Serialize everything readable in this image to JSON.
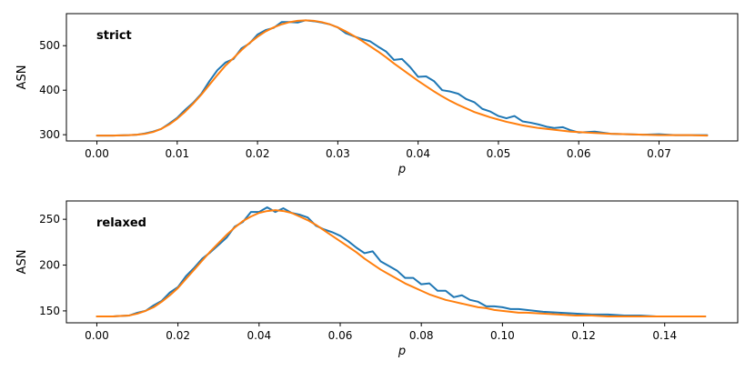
{
  "chart_data": [
    {
      "type": "line",
      "title": "strict",
      "xlabel": "p",
      "ylabel": "ASN",
      "xlim": [
        -0.0038,
        0.0798
      ],
      "ylim": [
        286,
        572
      ],
      "xticks": [
        0.0,
        0.01,
        0.02,
        0.03,
        0.04,
        0.05,
        0.06,
        0.07
      ],
      "xtick_labels": [
        "0.00",
        "0.01",
        "0.02",
        "0.03",
        "0.04",
        "0.05",
        "0.06",
        "0.07"
      ],
      "yticks": [
        300,
        400,
        500
      ],
      "ytick_labels": [
        "300",
        "400",
        "500"
      ],
      "grid": false,
      "series": [
        {
          "color": "#1f77b4",
          "x": [
            0,
            0.002,
            0.004,
            0.005,
            0.006,
            0.007,
            0.008,
            0.009,
            0.01,
            0.011,
            0.012,
            0.013,
            0.014,
            0.015,
            0.016,
            0.017,
            0.018,
            0.019,
            0.02,
            0.021,
            0.022,
            0.023,
            0.024,
            0.025,
            0.026,
            0.027,
            0.028,
            0.029,
            0.03,
            0.031,
            0.032,
            0.033,
            0.034,
            0.035,
            0.036,
            0.037,
            0.038,
            0.039,
            0.04,
            0.041,
            0.042,
            0.043,
            0.044,
            0.045,
            0.046,
            0.047,
            0.048,
            0.049,
            0.05,
            0.051,
            0.052,
            0.053,
            0.054,
            0.055,
            0.056,
            0.057,
            0.058,
            0.059,
            0.06,
            0.062,
            0.064,
            0.066,
            0.068,
            0.07,
            0.072,
            0.074,
            0.076
          ],
          "y": [
            298,
            298,
            299,
            300,
            303,
            307,
            313,
            325,
            338,
            356,
            372,
            392,
            420,
            445,
            462,
            470,
            494,
            505,
            525,
            535,
            540,
            553,
            553,
            552,
            557,
            555,
            552,
            548,
            541,
            528,
            521,
            515,
            510,
            498,
            487,
            468,
            470,
            452,
            430,
            431,
            420,
            400,
            397,
            392,
            380,
            373,
            358,
            352,
            342,
            337,
            342,
            330,
            327,
            323,
            318,
            315,
            317,
            310,
            305,
            307,
            302,
            301,
            300,
            301,
            299,
            299,
            299
          ]
        },
        {
          "color": "#ff7f0e",
          "x": [
            0,
            0.002,
            0.004,
            0.005,
            0.006,
            0.007,
            0.008,
            0.009,
            0.01,
            0.011,
            0.012,
            0.013,
            0.014,
            0.015,
            0.016,
            0.017,
            0.018,
            0.019,
            0.02,
            0.021,
            0.022,
            0.023,
            0.024,
            0.025,
            0.026,
            0.027,
            0.028,
            0.029,
            0.03,
            0.031,
            0.032,
            0.033,
            0.034,
            0.035,
            0.036,
            0.037,
            0.038,
            0.039,
            0.04,
            0.041,
            0.042,
            0.043,
            0.044,
            0.045,
            0.046,
            0.047,
            0.048,
            0.049,
            0.05,
            0.051,
            0.052,
            0.053,
            0.054,
            0.055,
            0.056,
            0.057,
            0.058,
            0.059,
            0.06,
            0.062,
            0.064,
            0.066,
            0.068,
            0.07,
            0.072,
            0.074,
            0.076
          ],
          "y": [
            298,
            298,
            299,
            300,
            302,
            306,
            313,
            323,
            336,
            352,
            370,
            390,
            412,
            434,
            455,
            472,
            490,
            506,
            520,
            532,
            541,
            548,
            553,
            556,
            557,
            556,
            553,
            548,
            541,
            532,
            522,
            511,
            499,
            487,
            474,
            460,
            447,
            434,
            421,
            409,
            397,
            386,
            376,
            367,
            359,
            351,
            345,
            339,
            334,
            329,
            325,
            321,
            318,
            315,
            313,
            311,
            309,
            307,
            306,
            304,
            302,
            301,
            300,
            299,
            299,
            299,
            298
          ]
        }
      ]
    },
    {
      "type": "line",
      "title": "relaxed",
      "xlabel": "p",
      "ylabel": "ASN",
      "xlim": [
        -0.0075,
        0.158
      ],
      "ylim": [
        137,
        270
      ],
      "xticks": [
        0.0,
        0.02,
        0.04,
        0.06,
        0.08,
        0.1,
        0.12,
        0.14
      ],
      "xtick_labels": [
        "0.00",
        "0.02",
        "0.04",
        "0.06",
        "0.08",
        "0.10",
        "0.12",
        "0.14"
      ],
      "yticks": [
        150,
        200,
        250
      ],
      "ytick_labels": [
        "150",
        "200",
        "250"
      ],
      "grid": false,
      "series": [
        {
          "color": "#1f77b4",
          "x": [
            0,
            0.004,
            0.008,
            0.01,
            0.012,
            0.014,
            0.016,
            0.018,
            0.02,
            0.022,
            0.024,
            0.026,
            0.028,
            0.03,
            0.032,
            0.034,
            0.036,
            0.038,
            0.04,
            0.042,
            0.044,
            0.046,
            0.048,
            0.05,
            0.052,
            0.054,
            0.056,
            0.058,
            0.06,
            0.062,
            0.064,
            0.066,
            0.068,
            0.07,
            0.072,
            0.074,
            0.076,
            0.078,
            0.08,
            0.082,
            0.084,
            0.086,
            0.088,
            0.09,
            0.092,
            0.094,
            0.096,
            0.098,
            0.1,
            0.102,
            0.104,
            0.106,
            0.11,
            0.114,
            0.118,
            0.122,
            0.126,
            0.13,
            0.134,
            0.138,
            0.142,
            0.146,
            0.15
          ],
          "y": [
            144,
            144,
            145,
            148,
            150,
            156,
            161,
            170,
            176,
            188,
            197,
            207,
            214,
            222,
            230,
            242,
            247,
            258,
            258,
            263,
            258,
            262,
            257,
            255,
            252,
            243,
            239,
            236,
            232,
            226,
            219,
            213,
            215,
            204,
            199,
            194,
            186,
            186,
            179,
            180,
            172,
            172,
            165,
            167,
            162,
            160,
            155,
            155,
            154,
            152,
            152,
            151,
            149,
            148,
            147,
            146,
            146,
            145,
            145,
            144,
            144,
            144,
            144
          ]
        },
        {
          "color": "#ff7f0e",
          "x": [
            0,
            0.004,
            0.008,
            0.01,
            0.012,
            0.014,
            0.016,
            0.018,
            0.02,
            0.022,
            0.024,
            0.026,
            0.028,
            0.03,
            0.032,
            0.034,
            0.036,
            0.038,
            0.04,
            0.042,
            0.044,
            0.046,
            0.048,
            0.05,
            0.052,
            0.054,
            0.056,
            0.058,
            0.06,
            0.062,
            0.064,
            0.066,
            0.068,
            0.07,
            0.072,
            0.074,
            0.076,
            0.078,
            0.08,
            0.082,
            0.084,
            0.086,
            0.088,
            0.09,
            0.092,
            0.094,
            0.096,
            0.098,
            0.1,
            0.102,
            0.104,
            0.106,
            0.11,
            0.114,
            0.118,
            0.122,
            0.126,
            0.13,
            0.134,
            0.138,
            0.142,
            0.146,
            0.15
          ],
          "y": [
            144,
            144,
            145,
            147,
            150,
            154,
            160,
            167,
            175,
            185,
            195,
            205,
            215,
            224,
            233,
            241,
            248,
            253,
            257,
            259,
            260,
            259,
            257,
            253,
            249,
            244,
            238,
            232,
            226,
            220,
            214,
            207,
            201,
            195,
            190,
            185,
            180,
            176,
            172,
            168,
            165,
            162,
            160,
            158,
            156,
            154,
            153,
            151,
            150,
            149,
            148,
            148,
            147,
            146,
            145,
            145,
            144,
            144,
            144,
            144,
            144,
            144,
            144
          ]
        }
      ]
    }
  ]
}
